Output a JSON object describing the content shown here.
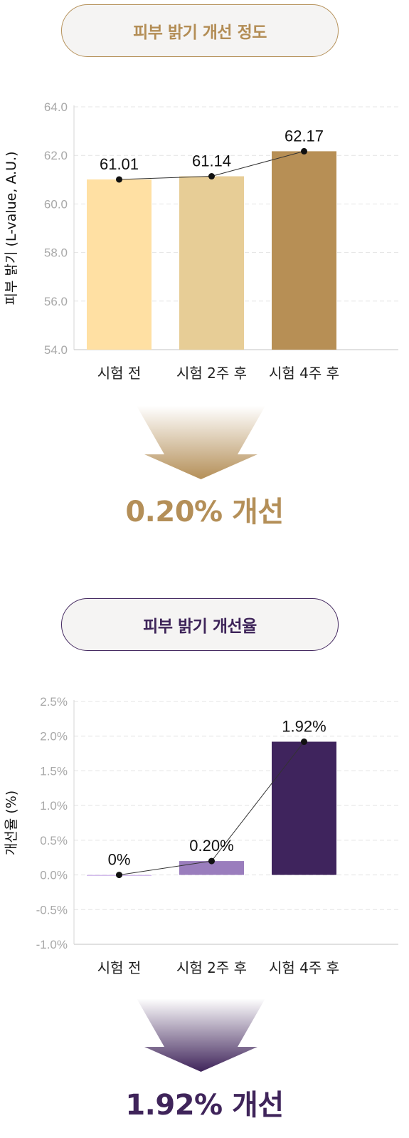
{
  "sections": [
    {
      "title": "피부 밝기 개선 정도",
      "result": "0.20% 개선",
      "accent": "#b48f58",
      "chart_data": {
        "type": "bar",
        "categories": [
          "시험 전",
          "시험 2주 후",
          "시험 4주 후"
        ],
        "values": [
          61.01,
          61.14,
          62.17
        ],
        "data_labels": [
          "61.01",
          "61.14",
          "62.17"
        ],
        "bar_colors": [
          "#ffe0a3",
          "#e7cd96",
          "#b78f55"
        ],
        "ylabel": "피부 밝기 (L-value, A.U.)",
        "ylim": [
          54.0,
          64.0
        ],
        "yticks": [
          54.0,
          56.0,
          58.0,
          60.0,
          62.0,
          64.0
        ],
        "ytick_labels": [
          "54.0",
          "56.0",
          "58.0",
          "60.0",
          "62.0",
          "64.0"
        ],
        "line_overlay": true,
        "grid": "horizontal-dashed"
      }
    },
    {
      "title": "피부 밝기 개선율",
      "result": "1.92% 개선",
      "accent": "#3f245a",
      "chart_data": {
        "type": "bar",
        "categories": [
          "시험 전",
          "시험 2주 후",
          "시험 4주 후"
        ],
        "values": [
          0.0,
          0.2,
          1.92
        ],
        "data_labels": [
          "0%",
          "0.20%",
          "1.92%"
        ],
        "bar_colors": [
          "#d3bcec",
          "#9a7dbd",
          "#3f245d"
        ],
        "ylabel": "개선율 (%)",
        "ylim": [
          -1.0,
          2.5
        ],
        "yticks": [
          -1.0,
          -0.5,
          0.0,
          0.5,
          1.0,
          1.5,
          2.0,
          2.5
        ],
        "ytick_labels": [
          "-1.0%",
          "-0.5%",
          "0.0%",
          "0.5%",
          "1.0%",
          "1.5%",
          "2.0%",
          "2.5%"
        ],
        "line_overlay": true,
        "grid": "horizontal-dashed"
      }
    }
  ]
}
